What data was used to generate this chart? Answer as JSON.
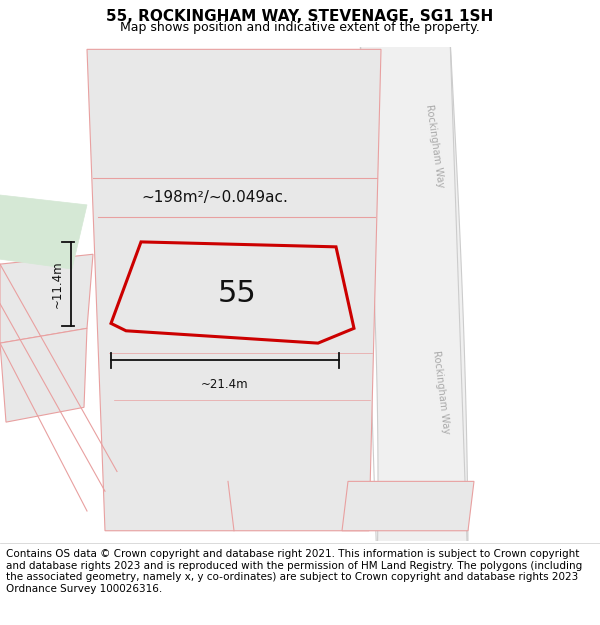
{
  "title": "55, ROCKINGHAM WAY, STEVENAGE, SG1 1SH",
  "subtitle": "Map shows position and indicative extent of the property.",
  "footer": "Contains OS data © Crown copyright and database right 2021. This information is subject to Crown copyright and database rights 2023 and is reproduced with the permission of HM Land Registry. The polygons (including the associated geometry, namely x, y co-ordinates) are subject to Crown copyright and database rights 2023 Ordnance Survey 100026316.",
  "title_fontsize": 11,
  "subtitle_fontsize": 9,
  "footer_fontsize": 7.5,
  "bg_color": "#ffffff",
  "area_label": "~198m²/~0.049ac.",
  "number_label": "55",
  "dim_height": "~11.4m",
  "dim_width": "~21.4m",
  "plot_edge_color": "#cc0000",
  "boundary_color": "#e8a0a0",
  "block_fill": "#e8e8e8",
  "road_fill": "#f0f0f0",
  "road_edge": "#cccccc",
  "green_fill": "#d5e8d5",
  "road_label_color": "#aaaaaa",
  "road_label": "Rockingham Way"
}
